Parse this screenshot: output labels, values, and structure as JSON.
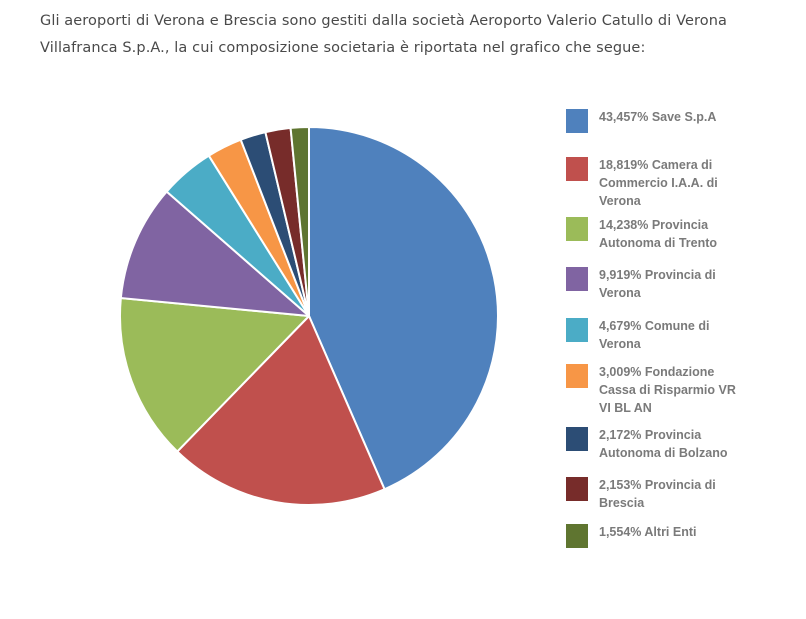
{
  "intro": {
    "line1": "Gli aeroporti di Verona e Brescia sono gestiti dalla società Aeroporto Valerio Catullo di Verona",
    "line2": "Villafranca S.p.A., la cui composizione societaria è riportata nel grafico che segue:"
  },
  "chart_data": {
    "type": "pie",
    "title": "",
    "legend_position": "right",
    "slices": [
      {
        "label": "43,457% Save S.p.A",
        "value": 43.457,
        "color": "#4f81bd"
      },
      {
        "label": "18,819% Camera di Commercio I.A.A. di Verona",
        "value": 18.819,
        "color": "#c0504d"
      },
      {
        "label": "14,238% Provincia Autonoma di Trento",
        "value": 14.238,
        "color": "#9bbb59"
      },
      {
        "label": "9,919% Provincia di Verona",
        "value": 9.919,
        "color": "#8064a2"
      },
      {
        "label": "4,679% Comune di Verona",
        "value": 4.679,
        "color": "#4bacc6"
      },
      {
        "label": "3,009% Fondazione Cassa di Risparmio VR VI BL AN",
        "value": 3.009,
        "color": "#f79646"
      },
      {
        "label": "2,172% Provincia Autonoma di Bolzano",
        "value": 2.172,
        "color": "#2c4d75"
      },
      {
        "label": "2,153% Provincia di Brescia",
        "value": 2.153,
        "color": "#772c2a"
      },
      {
        "label": "1,554% Altri Enti",
        "value": 1.554,
        "color": "#5f7530"
      }
    ]
  }
}
